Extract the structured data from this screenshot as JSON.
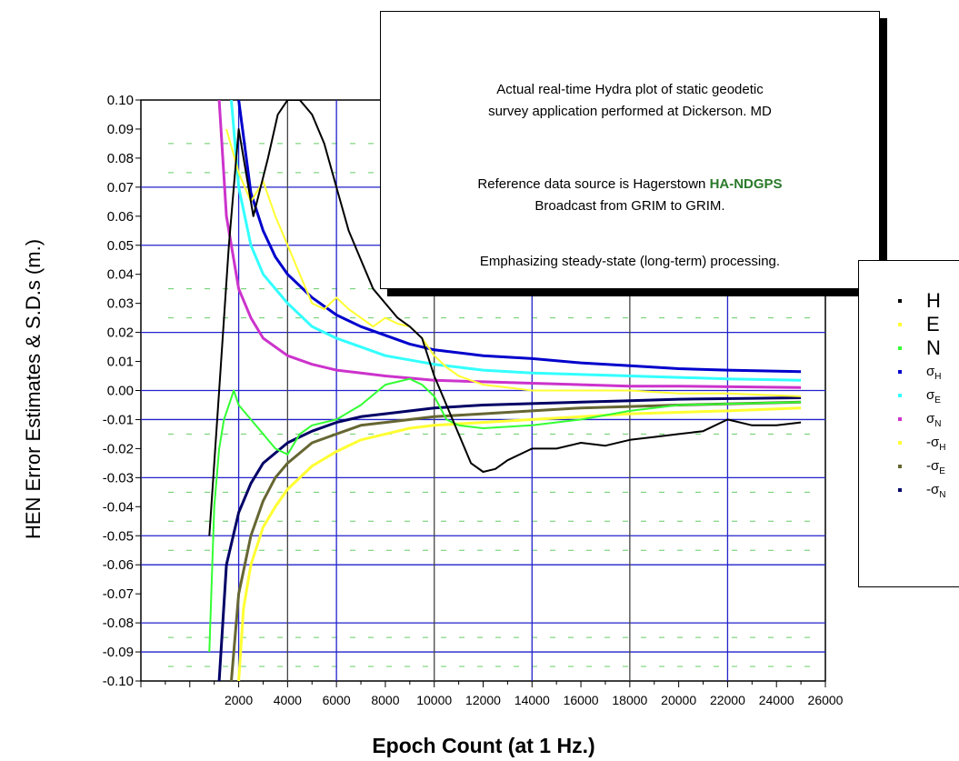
{
  "chart_data": {
    "type": "line",
    "xlabel": "Epoch Count (at 1 Hz.)",
    "ylabel": "HEN Error Estimates & S.D.s (m.)",
    "xlim": [
      -2000,
      26000
    ],
    "ylim": [
      -0.1,
      0.1
    ],
    "x_ticks": [
      "2000",
      "4000",
      "6000",
      "8000",
      "10000",
      "12000",
      "14000",
      "16000",
      "18000",
      "20000",
      "22000",
      "24000",
      "26000"
    ],
    "y_ticks": [
      "0.10",
      "0.09",
      "0.08",
      "0.07",
      "0.06",
      "0.05",
      "0.04",
      "0.03",
      "0.02",
      "0.01",
      "0.00",
      "-0.01",
      "-0.02",
      "-0.03",
      "-0.04",
      "-0.05",
      "-0.06",
      "-0.07",
      "-0.08",
      "-0.09",
      "-0.10"
    ],
    "grid": true,
    "legend_position": "right",
    "series": [
      {
        "name": "H",
        "color": "#000000",
        "x": [
          800,
          1200,
          1600,
          2000,
          2600,
          3200,
          3600,
          4000,
          4500,
          5000,
          5500,
          6000,
          6500,
          7000,
          7500,
          8000,
          8500,
          9000,
          9500,
          10000,
          10500,
          11000,
          11500,
          12000,
          12500,
          13000,
          14000,
          15000,
          16000,
          17000,
          18000,
          19000,
          20000,
          21000,
          22000,
          23000,
          24000,
          25000
        ],
        "y": [
          -0.05,
          0.0,
          0.05,
          0.09,
          0.06,
          0.08,
          0.095,
          0.1,
          0.1,
          0.095,
          0.085,
          0.07,
          0.055,
          0.045,
          0.035,
          0.03,
          0.025,
          0.022,
          0.018,
          0.005,
          -0.005,
          -0.015,
          -0.025,
          -0.028,
          -0.027,
          -0.024,
          -0.02,
          -0.02,
          -0.018,
          -0.019,
          -0.017,
          -0.016,
          -0.015,
          -0.014,
          -0.01,
          -0.012,
          -0.012,
          -0.011
        ]
      },
      {
        "name": "E",
        "color": "#ffff33",
        "x": [
          1500,
          2000,
          2500,
          3000,
          3500,
          4000,
          4500,
          5000,
          5500,
          6000,
          6500,
          7000,
          7500,
          8000,
          8500,
          9000,
          9500,
          10000,
          10500,
          11000,
          12000,
          13000,
          14000,
          16000,
          18000,
          20000,
          22000,
          25000
        ],
        "y": [
          0.09,
          0.075,
          0.065,
          0.072,
          0.06,
          0.05,
          0.04,
          0.03,
          0.028,
          0.032,
          0.028,
          0.025,
          0.022,
          0.025,
          0.023,
          0.022,
          0.018,
          0.012,
          0.008,
          0.005,
          0.002,
          0.001,
          0.0,
          0.0,
          0.0,
          -0.001,
          -0.001,
          -0.002
        ]
      },
      {
        "name": "N",
        "color": "#33ff33",
        "x": [
          800,
          1000,
          1200,
          1400,
          1600,
          1800,
          2000,
          2500,
          3000,
          3500,
          4000,
          4500,
          5000,
          6000,
          7000,
          8000,
          8500,
          9000,
          9500,
          10000,
          10500,
          11000,
          12000,
          14000,
          16000,
          18000,
          20000,
          25000
        ],
        "y": [
          -0.09,
          -0.04,
          -0.02,
          -0.01,
          -0.005,
          0.0,
          -0.005,
          -0.01,
          -0.015,
          -0.02,
          -0.022,
          -0.015,
          -0.012,
          -0.01,
          -0.005,
          0.002,
          0.003,
          0.004,
          0.002,
          -0.002,
          -0.01,
          -0.012,
          -0.013,
          -0.012,
          -0.01,
          -0.007,
          -0.005,
          -0.004
        ]
      },
      {
        "name": "σH",
        "color": "#0000cc",
        "x": [
          2000,
          2500,
          3000,
          3500,
          4000,
          5000,
          6000,
          7000,
          8000,
          9000,
          10000,
          12000,
          14000,
          16000,
          18000,
          20000,
          22000,
          25000
        ],
        "y": [
          0.1,
          0.068,
          0.055,
          0.046,
          0.04,
          0.032,
          0.026,
          0.022,
          0.019,
          0.016,
          0.014,
          0.012,
          0.011,
          0.0095,
          0.0085,
          0.0075,
          0.007,
          0.0065
        ]
      },
      {
        "name": "σE",
        "color": "#33ffff",
        "x": [
          1700,
          2000,
          2500,
          3000,
          4000,
          5000,
          6000,
          7000,
          8000,
          10000,
          12000,
          14000,
          16000,
          18000,
          20000,
          22000,
          25000
        ],
        "y": [
          0.1,
          0.07,
          0.05,
          0.04,
          0.03,
          0.022,
          0.018,
          0.015,
          0.012,
          0.009,
          0.007,
          0.006,
          0.0055,
          0.005,
          0.0045,
          0.004,
          0.0035
        ]
      },
      {
        "name": "σN",
        "color": "#cc33cc",
        "x": [
          1200,
          1500,
          2000,
          2500,
          3000,
          4000,
          5000,
          6000,
          7000,
          8000,
          10000,
          12000,
          14000,
          16000,
          18000,
          20000,
          25000
        ],
        "y": [
          0.1,
          0.06,
          0.035,
          0.025,
          0.018,
          0.012,
          0.009,
          0.007,
          0.006,
          0.005,
          0.0035,
          0.003,
          0.0025,
          0.002,
          0.0015,
          0.0015,
          0.001
        ]
      },
      {
        "name": "-σH",
        "color": "#ffff33",
        "x": [
          2000,
          2200,
          2500,
          3000,
          3500,
          4000,
          5000,
          6000,
          7000,
          8000,
          9000,
          10000,
          12000,
          14000,
          16000,
          18000,
          20000,
          22000,
          25000
        ],
        "y": [
          -0.1,
          -0.075,
          -0.06,
          -0.047,
          -0.04,
          -0.034,
          -0.026,
          -0.021,
          -0.017,
          -0.015,
          -0.013,
          -0.012,
          -0.011,
          -0.01,
          -0.009,
          -0.008,
          -0.0075,
          -0.007,
          -0.006
        ]
      },
      {
        "name": "-σE",
        "color": "#666633",
        "x": [
          1700,
          2000,
          2500,
          3000,
          3500,
          4000,
          5000,
          6000,
          7000,
          8000,
          10000,
          12000,
          14000,
          16000,
          18000,
          20000,
          25000
        ],
        "y": [
          -0.1,
          -0.07,
          -0.05,
          -0.038,
          -0.03,
          -0.025,
          -0.018,
          -0.015,
          -0.012,
          -0.011,
          -0.009,
          -0.008,
          -0.007,
          -0.006,
          -0.0055,
          -0.005,
          -0.004
        ]
      },
      {
        "name": "-σN",
        "color": "#000066",
        "x": [
          1200,
          1500,
          2000,
          2500,
          3000,
          4000,
          5000,
          6000,
          7000,
          8000,
          10000,
          12000,
          14000,
          16000,
          18000,
          20000,
          25000
        ],
        "y": [
          -0.1,
          -0.06,
          -0.042,
          -0.032,
          -0.025,
          -0.018,
          -0.014,
          -0.011,
          -0.009,
          -0.008,
          -0.006,
          -0.005,
          -0.0045,
          -0.004,
          -0.0035,
          -0.003,
          -0.0025
        ]
      }
    ]
  },
  "annotation": {
    "line1": "Actual real-time Hydra plot of static geodetic",
    "line2": "survey application performed at Dickerson. MD",
    "line3_pre": "Reference data source is Hagerstown ",
    "line3_highlight": "HA-NDGPS",
    "line4": "Broadcast from GRIM to GRIM.",
    "line5": "Emphasizing steady-state (long-term) processing."
  },
  "legend": [
    {
      "symbol": "H",
      "sub": "",
      "color": "#000000"
    },
    {
      "symbol": "E",
      "sub": "",
      "color": "#ffff33"
    },
    {
      "symbol": "N",
      "sub": "",
      "color": "#33ff33"
    },
    {
      "symbol": "σ",
      "sub": "H",
      "color": "#0000cc"
    },
    {
      "symbol": "σ",
      "sub": "E",
      "color": "#33ffff"
    },
    {
      "symbol": "σ",
      "sub": "N",
      "color": "#cc33cc"
    },
    {
      "symbol": "-σ",
      "sub": "H",
      "color": "#ffff33"
    },
    {
      "symbol": "-σ",
      "sub": "E",
      "color": "#666633"
    },
    {
      "symbol": "-σ",
      "sub": "N",
      "color": "#000066"
    }
  ]
}
